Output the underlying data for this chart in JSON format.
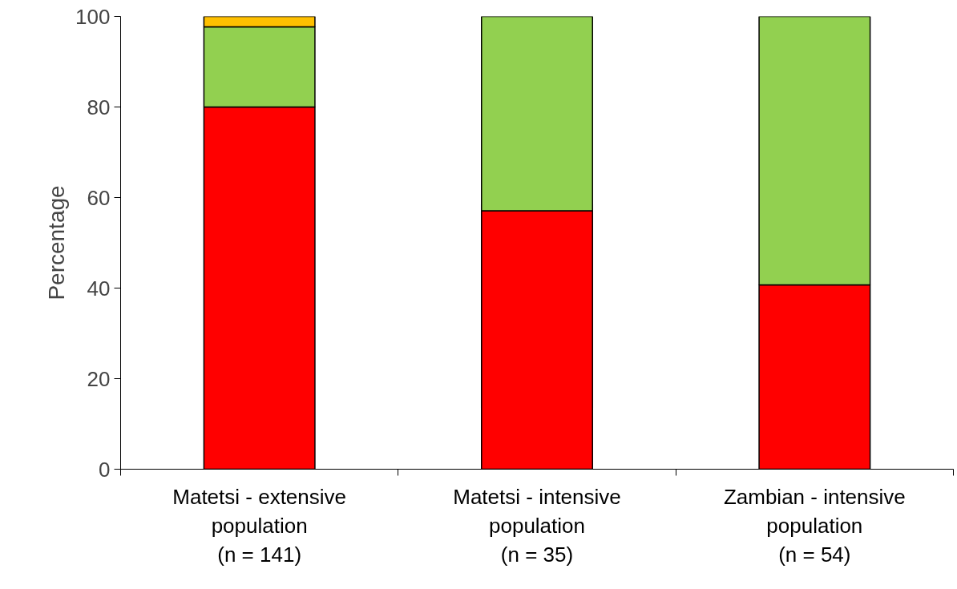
{
  "chart_data": {
    "type": "bar",
    "stacked": true,
    "ylabel": "Percentage",
    "categories": [
      "Matetsi - extensive\npopulation\n(n = 141)",
      "Matetsi - intensive\npopulation\n(n = 35)",
      "Zambian - intensive\npopulation\n(n = 54)"
    ],
    "series": [
      {
        "color": "#ff0000",
        "values": [
          80,
          57.1,
          40.7
        ]
      },
      {
        "color": "#92d050",
        "values": [
          17.7,
          42.9,
          59.3
        ]
      },
      {
        "color": "#ffc000",
        "values": [
          2.3,
          0,
          0
        ]
      }
    ],
    "ylim": [
      0,
      100
    ],
    "yticks": [
      0,
      20,
      40,
      60,
      80,
      100
    ],
    "grid": false
  }
}
